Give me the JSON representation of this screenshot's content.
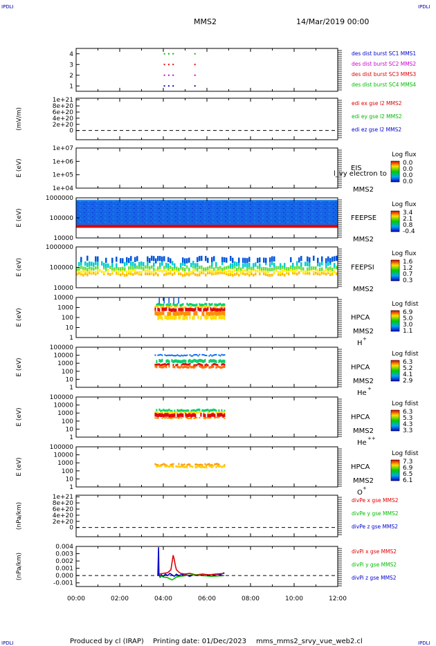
{
  "header": {
    "corner_left_top": "IPDLI",
    "corner_right_top": "IPDLI",
    "corner_left_bottom": "IPDLI",
    "corner_right_bottom": "IPDLI",
    "title": "MMS2",
    "datetime": "14/Mar/2019 00:00"
  },
  "footer": {
    "produced": "Produced by cl (IRAP)",
    "printing": "Printing date: 01/Dec/2023",
    "script": "mms_mms2_srvy_vue_web2.cl"
  },
  "colors": {
    "red": "#dd0000",
    "green": "#00bb00",
    "blue": "#0000cc",
    "magenta": "#cc00cc",
    "ipdli": "#0000aa"
  },
  "chart_data": [
    {
      "id": "burst",
      "type": "scatter",
      "xlim": [
        0,
        12
      ],
      "ylim": [
        0.5,
        4.5
      ],
      "yticks": [
        "1",
        "2",
        "3",
        "4"
      ],
      "legend": [
        {
          "text": "des dist burst SC1 MMS1",
          "color": "#0000cc"
        },
        {
          "text": "des dist burst SC2 MMS2",
          "color": "#cc00cc"
        },
        {
          "text": "des dist burst SC3 MMS3",
          "color": "#dd0000"
        },
        {
          "text": "des dist burst SC4 MMS4",
          "color": "#00bb00"
        }
      ],
      "series": [
        {
          "y": 1,
          "color": "#0000cc",
          "x": [
            4.05,
            4.25,
            4.45,
            5.45
          ]
        },
        {
          "y": 2,
          "color": "#cc00cc",
          "x": [
            4.05,
            4.25,
            4.45,
            5.45
          ]
        },
        {
          "y": 3,
          "color": "#dd0000",
          "x": [
            4.05,
            4.25,
            4.45,
            5.45
          ]
        },
        {
          "y": 4,
          "color": "#00bb00",
          "x": [
            4.05,
            4.25,
            4.45,
            5.45
          ]
        }
      ]
    },
    {
      "id": "edi",
      "type": "line",
      "ylabel": "(mV/m)",
      "xlim": [
        0,
        12
      ],
      "ylim": [
        -3e+20,
        1.05e+21
      ],
      "yticks": [
        "0",
        "2e+20",
        "4e+20",
        "6e+20",
        "8e+20",
        "1e+21"
      ],
      "ytick_values": [
        0,
        2e+20,
        4e+20,
        6e+20,
        8e+20,
        1e+21
      ],
      "zero_line": true,
      "legend": [
        {
          "text": "edi ex gse l2 MMS2",
          "color": "#dd0000"
        },
        {
          "text": "edi ey gse l2 MMS2",
          "color": "#00bb00"
        },
        {
          "text": "edi ez gse l2 MMS2",
          "color": "#0000cc"
        }
      ]
    },
    {
      "id": "eis",
      "type": "heatmap",
      "ylabel": "E (eV)",
      "yscale": "log",
      "ylim": [
        10000.0,
        10000000.0
      ],
      "yticks": [
        "1e+04",
        "1e+05",
        "1e+06",
        "1e+07"
      ],
      "labels": [
        "EIS",
        "MMS2"
      ],
      "overlay_text": "l_vy electron to",
      "colorbar": {
        "title": "Log flux",
        "ticks": [
          "0.0",
          "0.0",
          "0.0",
          "0.0"
        ]
      }
    },
    {
      "id": "feepse",
      "type": "heatmap",
      "ylabel": "E (eV)",
      "yscale": "log",
      "ylim": [
        10000,
        1000000
      ],
      "yticks": [
        "10000",
        "100000",
        "1000000"
      ],
      "labels": [
        "FEEPSE",
        "MMS2"
      ],
      "colorbar": {
        "title": "Log flux",
        "ticks": [
          "3.4",
          "2.1",
          "0.8",
          "-0.4"
        ]
      }
    },
    {
      "id": "feepsi",
      "type": "heatmap",
      "ylabel": "E (eV)",
      "yscale": "log",
      "ylim": [
        10000,
        1000000
      ],
      "yticks": [
        "10000",
        "100000",
        "1000000"
      ],
      "labels": [
        "FEEPSI",
        "MMS2"
      ],
      "colorbar": {
        "title": "Log flux",
        "ticks": [
          "1.6",
          "1.2",
          "0.7",
          "0.3"
        ]
      }
    },
    {
      "id": "hpca_h",
      "type": "heatmap",
      "ylabel": "E (eV)",
      "yscale": "log",
      "ylim": [
        1,
        10000
      ],
      "yticks": [
        "1",
        "10",
        "100",
        "1000",
        "10000"
      ],
      "labels": [
        "HPCA",
        "MMS2"
      ],
      "species": "H",
      "species_sup": "+",
      "active_x": [
        3.6,
        6.8
      ],
      "colorbar": {
        "title": "Log fdist",
        "ticks": [
          "6.9",
          "5.0",
          "3.0",
          "1.1"
        ]
      }
    },
    {
      "id": "hpca_he",
      "type": "heatmap",
      "ylabel": "E (eV)",
      "yscale": "log",
      "ylim": [
        1,
        100000
      ],
      "yticks": [
        "1",
        "10",
        "100",
        "1000",
        "10000",
        "100000"
      ],
      "labels": [
        "HPCA",
        "MMS2"
      ],
      "species": "He",
      "species_sup": "+",
      "active_x": [
        3.6,
        6.8
      ],
      "colorbar": {
        "title": "Log fdist",
        "ticks": [
          "6.3",
          "5.2",
          "4.1",
          "2.9"
        ]
      }
    },
    {
      "id": "hpca_hepp",
      "type": "heatmap",
      "ylabel": "E (eV)",
      "yscale": "log",
      "ylim": [
        1,
        100000
      ],
      "yticks": [
        "1",
        "10",
        "100",
        "1000",
        "10000",
        "100000"
      ],
      "labels": [
        "HPCA",
        "MMS2"
      ],
      "species": "He",
      "species_sup": "++",
      "active_x": [
        3.6,
        6.8
      ],
      "colorbar": {
        "title": "Log fdist",
        "ticks": [
          "6.3",
          "5.3",
          "4.3",
          "3.3"
        ]
      }
    },
    {
      "id": "hpca_o",
      "type": "heatmap",
      "ylabel": "E (eV)",
      "yscale": "log",
      "ylim": [
        1,
        100000
      ],
      "yticks": [
        "1",
        "10",
        "100",
        "1000",
        "10000",
        "100000"
      ],
      "labels": [
        "HPCA",
        "MMS2"
      ],
      "species": "O",
      "species_sup": "+",
      "active_x": [
        3.6,
        6.8
      ],
      "colorbar": {
        "title": "Log fdist",
        "ticks": [
          "7.3",
          "6.9",
          "6.5",
          "6.1"
        ]
      }
    },
    {
      "id": "divpe",
      "type": "line",
      "ylabel": "(nPa/km)",
      "xlim": [
        0,
        12
      ],
      "ylim": [
        -3e+20,
        1.05e+21
      ],
      "yticks": [
        "0",
        "2e+20",
        "4e+20",
        "6e+20",
        "8e+20",
        "1e+21"
      ],
      "ytick_values": [
        0,
        2e+20,
        4e+20,
        6e+20,
        8e+20,
        1e+21
      ],
      "zero_line": true,
      "legend": [
        {
          "text": "divPe x gse MMS2",
          "color": "#dd0000"
        },
        {
          "text": "divPe y gse MMS2",
          "color": "#00bb00"
        },
        {
          "text": "divPe z gse MMS2",
          "color": "#0000cc"
        }
      ]
    },
    {
      "id": "divpi",
      "type": "line",
      "ylabel": "(nPa/km)",
      "xlim": [
        0,
        12
      ],
      "ylim": [
        -0.0015,
        0.004
      ],
      "yticks": [
        "-0.001",
        "0.000",
        "0.001",
        "0.002",
        "0.003",
        "0.004"
      ],
      "ytick_values": [
        -0.001,
        0,
        0.001,
        0.002,
        0.003,
        0.004
      ],
      "zero_line": true,
      "xticks": [
        "00:00",
        "02:00",
        "04:00",
        "06:00",
        "08:00",
        "10:00",
        "12:00"
      ],
      "legend": [
        {
          "text": "divPi x gse MMS2",
          "color": "#dd0000"
        },
        {
          "text": "divPi y gse MMS2",
          "color": "#00bb00"
        },
        {
          "text": "divPi z gse MMS2",
          "color": "#0000cc"
        }
      ],
      "series": [
        {
          "name": "divPi z gse MMS2",
          "color": "#0000cc",
          "x": [
            3.75,
            3.78,
            3.8,
            3.85,
            3.9,
            4.0,
            4.1,
            4.2,
            4.3,
            4.4,
            4.5,
            4.6,
            4.7,
            4.8,
            5.0,
            5.2,
            5.4,
            5.6,
            5.8,
            6.0,
            6.2,
            6.4,
            6.6,
            6.8
          ],
          "y": [
            0.0,
            0.0039,
            0.0001,
            -0.0002,
            0.0001,
            -0.0001,
            0.0002,
            0.0,
            0.0003,
            0.0001,
            -0.0001,
            0.0002,
            0.0,
            0.0001,
            0.0002,
            -0.0001,
            0.0001,
            0.0,
            0.0002,
            0.0001,
            -0.0001,
            0.0002,
            0.0001,
            0.0004
          ]
        },
        {
          "name": "divPi x gse MMS2",
          "color": "#dd0000",
          "x": [
            3.8,
            4.0,
            4.2,
            4.35,
            4.45,
            4.5,
            4.55,
            4.6,
            4.7,
            4.8,
            5.0,
            5.2,
            5.5,
            5.8,
            6.1,
            6.4,
            6.8
          ],
          "y": [
            0.0002,
            0.0003,
            0.0004,
            0.0008,
            0.0028,
            0.0022,
            0.0014,
            0.0008,
            0.0005,
            0.0003,
            0.0002,
            0.0003,
            0.0001,
            0.0002,
            0.0001,
            0.0002,
            0.0003
          ]
        },
        {
          "name": "divPi y gse MMS2",
          "color": "#00bb00",
          "x": [
            3.8,
            4.0,
            4.2,
            4.4,
            4.5,
            4.6,
            4.8,
            5.0,
            5.4,
            5.8,
            6.2,
            6.8
          ],
          "y": [
            0.0,
            -0.0002,
            -0.0003,
            -0.0006,
            -0.0004,
            -0.0002,
            -0.0001,
            0.0,
            0.0001,
            0.0,
            -0.0001,
            0.0
          ]
        }
      ]
    }
  ]
}
